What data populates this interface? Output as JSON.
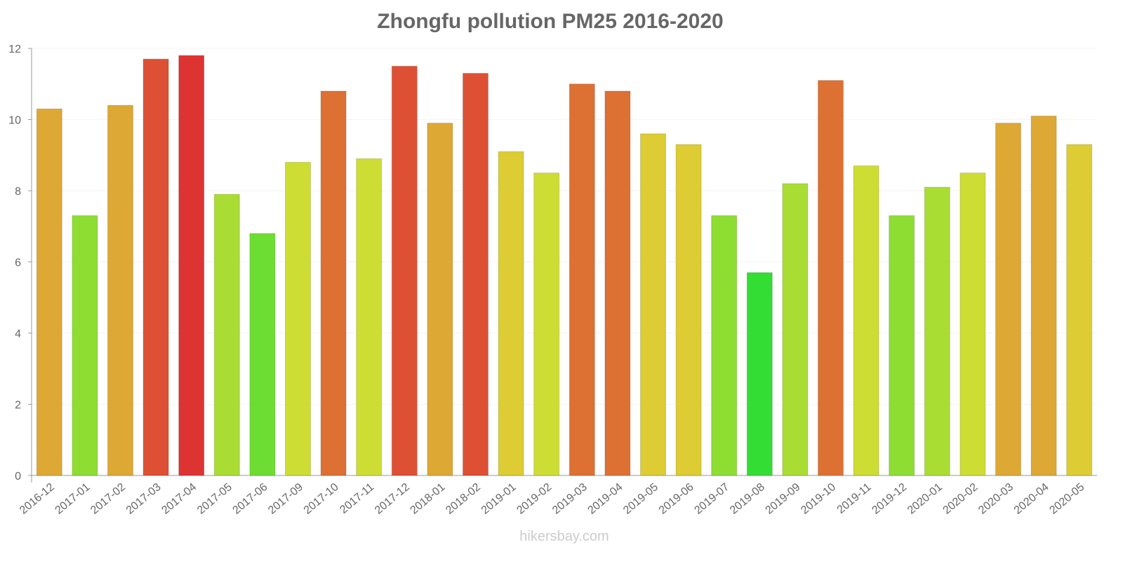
{
  "chart_data": {
    "type": "bar",
    "title": "Zhongfu pollution PM25 2016-2020",
    "xlabel": "",
    "ylabel": "",
    "ylim": [
      0,
      12
    ],
    "yticks": [
      0,
      2,
      4,
      6,
      8,
      10,
      12
    ],
    "grid": true,
    "categories": [
      "2016-12",
      "2017-01",
      "2017-02",
      "2017-03",
      "2017-04",
      "2017-05",
      "2017-06",
      "2017-09",
      "2017-10",
      "2017-11",
      "2017-12",
      "2018-01",
      "2018-02",
      "2019-01",
      "2019-02",
      "2019-03",
      "2019-04",
      "2019-05",
      "2019-06",
      "2019-07",
      "2019-08",
      "2019-09",
      "2019-10",
      "2019-11",
      "2019-12",
      "2020-01",
      "2020-02",
      "2020-03",
      "2020-04",
      "2020-05"
    ],
    "values": [
      10.3,
      7.3,
      10.4,
      11.7,
      11.8,
      7.9,
      6.8,
      8.8,
      10.8,
      8.9,
      11.5,
      9.9,
      11.3,
      9.1,
      8.5,
      11.0,
      10.8,
      9.6,
      9.3,
      7.3,
      5.7,
      8.2,
      11.1,
      8.7,
      7.3,
      8.1,
      8.5,
      9.9,
      10.1,
      9.3
    ],
    "colors": [
      "#dda833",
      "#8edd33",
      "#dda833",
      "#dd5033",
      "#dd3333",
      "#aadd33",
      "#6edd33",
      "#cedd33",
      "#dd7033",
      "#cedd33",
      "#dd5033",
      "#dda833",
      "#dd5033",
      "#ddcc33",
      "#cedd33",
      "#dd7033",
      "#dd7033",
      "#ddcc33",
      "#ddcc33",
      "#8edd33",
      "#33dd33",
      "#aadd33",
      "#dd7033",
      "#cedd33",
      "#8edd33",
      "#aadd33",
      "#cedd33",
      "#dda833",
      "#dda833",
      "#ddcc33"
    ]
  },
  "watermark": "hikersbay.com"
}
